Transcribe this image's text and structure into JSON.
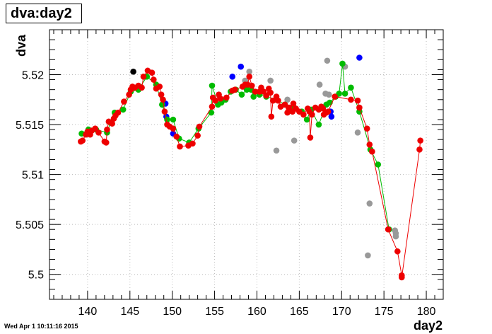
{
  "chart_data": {
    "type": "scatter",
    "title": "dva:day2",
    "xlabel": "day2",
    "ylabel": "dva",
    "timestamp": "Wed Apr  1 10:11:16 2015",
    "xlim": [
      135.5,
      182
    ],
    "ylim": [
      5.4975,
      5.5245
    ],
    "grid": true,
    "xticks": [
      140,
      145,
      150,
      155,
      160,
      165,
      170,
      175,
      180
    ],
    "yticks": [
      5.5,
      5.505,
      5.51,
      5.515,
      5.52
    ],
    "ytick_labels": [
      "5.5",
      "5.505",
      "5.51",
      "5.515",
      "5.52"
    ],
    "series": [
      {
        "color": "#000000",
        "connected": false,
        "points": [
          [
            145.4,
            5.5203
          ]
        ]
      },
      {
        "color": "#0000ff",
        "connected": false,
        "points": [
          [
            149.2,
            5.5171
          ],
          [
            149.3,
            5.5158
          ],
          [
            150.1,
            5.5141
          ],
          [
            157.1,
            5.5198
          ],
          [
            158.1,
            5.5208
          ],
          [
            158.6,
            5.5188
          ],
          [
            168.7,
            5.5163
          ],
          [
            168.8,
            5.5158
          ],
          [
            172.1,
            5.5217
          ]
        ]
      },
      {
        "color": "#999999",
        "connected": false,
        "points": [
          [
            158.6,
            5.5194
          ],
          [
            159.1,
            5.5203
          ],
          [
            161.6,
            5.5194
          ],
          [
            162.3,
            5.5124
          ],
          [
            163.6,
            5.5175
          ],
          [
            164.4,
            5.5134
          ],
          [
            167.4,
            5.519
          ],
          [
            168.1,
            5.5181
          ],
          [
            168.3,
            5.5214
          ],
          [
            168.5,
            5.518
          ],
          [
            170.4,
            5.5208
          ],
          [
            171.9,
            5.5142
          ],
          [
            173.3,
            5.5071
          ],
          [
            173.1,
            5.5019
          ],
          [
            176.3,
            5.5044
          ],
          [
            176.4,
            5.5041
          ],
          [
            176.4,
            5.5038
          ]
        ]
      },
      {
        "color": "#00bb00",
        "connected": true,
        "points": [
          [
            139.3,
            5.5141
          ],
          [
            140.1,
            5.5145
          ],
          [
            141.0,
            5.5145
          ],
          [
            142.3,
            5.5142
          ],
          [
            142.7,
            5.5152
          ],
          [
            143.2,
            5.5162
          ],
          [
            144.2,
            5.5165
          ],
          [
            145.1,
            5.5183
          ],
          [
            146.0,
            5.5185
          ],
          [
            147.0,
            5.5198
          ],
          [
            148.1,
            5.519
          ],
          [
            148.8,
            5.517
          ],
          [
            149.4,
            5.5155
          ],
          [
            150.1,
            5.5155
          ],
          [
            150.8,
            5.5136
          ],
          [
            152.0,
            5.5132
          ],
          [
            153.1,
            5.5146
          ],
          [
            154.6,
            5.5162
          ],
          [
            154.7,
            5.5189
          ],
          [
            155.4,
            5.517
          ],
          [
            155.8,
            5.5172
          ],
          [
            156.3,
            5.5175
          ],
          [
            156.9,
            5.5183
          ],
          [
            157.5,
            5.5185
          ],
          [
            158.2,
            5.518
          ],
          [
            158.8,
            5.5185
          ],
          [
            159.3,
            5.5185
          ],
          [
            159.6,
            5.5178
          ],
          [
            160.3,
            5.518
          ],
          [
            161.1,
            5.5178
          ],
          [
            162.3,
            5.5175
          ],
          [
            163.3,
            5.517
          ],
          [
            164.3,
            5.5168
          ],
          [
            165.3,
            5.5163
          ],
          [
            165.9,
            5.5155
          ],
          [
            166.4,
            5.5165
          ],
          [
            167.3,
            5.515
          ],
          [
            168.2,
            5.517
          ],
          [
            168.6,
            5.5172
          ],
          [
            169.3,
            5.5178
          ],
          [
            169.7,
            5.5181
          ],
          [
            170.1,
            5.5211
          ],
          [
            170.4,
            5.5181
          ],
          [
            171.1,
            5.5187
          ],
          [
            172.1,
            5.5163
          ],
          [
            173.4,
            5.5125
          ],
          [
            174.3,
            5.511
          ],
          [
            175.6,
            5.5045
          ]
        ]
      },
      {
        "color": "#ee0000",
        "connected": true,
        "points": [
          [
            139.2,
            5.5133
          ],
          [
            139.4,
            5.5134
          ],
          [
            139.8,
            5.514
          ],
          [
            140.0,
            5.5143
          ],
          [
            140.3,
            5.514
          ],
          [
            140.5,
            5.5144
          ],
          [
            140.9,
            5.5146
          ],
          [
            141.3,
            5.5142
          ],
          [
            142.0,
            5.5133
          ],
          [
            142.2,
            5.5132
          ],
          [
            142.3,
            5.5145
          ],
          [
            142.5,
            5.5153
          ],
          [
            142.9,
            5.5151
          ],
          [
            143.1,
            5.5156
          ],
          [
            143.3,
            5.5159
          ],
          [
            143.6,
            5.5162
          ],
          [
            144.3,
            5.5173
          ],
          [
            144.9,
            5.518
          ],
          [
            145.1,
            5.5185
          ],
          [
            145.3,
            5.5188
          ],
          [
            145.6,
            5.5187
          ],
          [
            146.0,
            5.5189
          ],
          [
            146.4,
            5.5187
          ],
          [
            146.6,
            5.5198
          ],
          [
            147.1,
            5.5204
          ],
          [
            147.6,
            5.5202
          ],
          [
            147.8,
            5.5195
          ],
          [
            148.1,
            5.5186
          ],
          [
            148.5,
            5.5188
          ],
          [
            148.7,
            5.518
          ],
          [
            148.9,
            5.5175
          ],
          [
            149.1,
            5.5163
          ],
          [
            149.4,
            5.515
          ],
          [
            149.7,
            5.5148
          ],
          [
            150.1,
            5.5146
          ],
          [
            150.5,
            5.5138
          ],
          [
            150.9,
            5.5128
          ],
          [
            151.9,
            5.5129
          ],
          [
            152.4,
            5.5131
          ],
          [
            153.0,
            5.5139
          ],
          [
            153.2,
            5.5148
          ],
          [
            154.7,
            5.5168
          ],
          [
            154.8,
            5.5177
          ],
          [
            155.1,
            5.5174
          ],
          [
            155.5,
            5.518
          ],
          [
            155.7,
            5.5176
          ],
          [
            156.4,
            5.5177
          ],
          [
            157.1,
            5.5184
          ],
          [
            157.4,
            5.5185
          ],
          [
            158.3,
            5.5188
          ],
          [
            158.6,
            5.519
          ],
          [
            158.9,
            5.519
          ],
          [
            159.1,
            5.5198
          ],
          [
            159.4,
            5.5189
          ],
          [
            159.8,
            5.5183
          ],
          [
            160.3,
            5.5183
          ],
          [
            160.5,
            5.5187
          ],
          [
            160.8,
            5.5183
          ],
          [
            161.1,
            5.5179
          ],
          [
            161.4,
            5.5186
          ],
          [
            161.6,
            5.5182
          ],
          [
            161.7,
            5.5158
          ],
          [
            161.9,
            5.5174
          ],
          [
            162.3,
            5.5178
          ],
          [
            162.5,
            5.5174
          ],
          [
            162.8,
            5.5168
          ],
          [
            163.3,
            5.517
          ],
          [
            163.6,
            5.5162
          ],
          [
            163.8,
            5.5167
          ],
          [
            164.2,
            5.5163
          ],
          [
            164.3,
            5.5171
          ],
          [
            164.6,
            5.5166
          ],
          [
            165.0,
            5.5163
          ],
          [
            165.5,
            5.516
          ],
          [
            166.0,
            5.5166
          ],
          [
            166.2,
            5.5163
          ],
          [
            166.3,
            5.5137
          ],
          [
            166.5,
            5.516
          ],
          [
            166.9,
            5.5167
          ],
          [
            167.3,
            5.5165
          ],
          [
            167.6,
            5.5168
          ],
          [
            167.8,
            5.5166
          ],
          [
            167.9,
            5.516
          ],
          [
            168.2,
            5.5162
          ],
          [
            168.4,
            5.5163
          ],
          [
            169.2,
            5.5178
          ],
          [
            171.1,
            5.5175
          ],
          [
            171.9,
            5.5174
          ],
          [
            172.1,
            5.5167
          ],
          [
            173.0,
            5.5146
          ],
          [
            173.3,
            5.513
          ],
          [
            173.6,
            5.5123
          ],
          [
            175.5,
            5.5045
          ],
          [
            176.6,
            5.5023
          ],
          [
            177.1,
            5.4999
          ],
          [
            177.1,
            5.4997
          ],
          [
            179.2,
            5.5125
          ],
          [
            179.3,
            5.5134
          ]
        ]
      }
    ]
  }
}
